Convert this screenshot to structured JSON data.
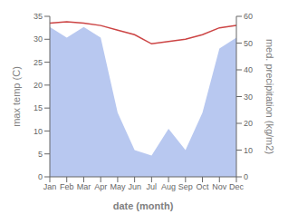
{
  "chart_data": {
    "type": "line",
    "xlabel": "date (month)",
    "ylabel": "max temp (C)",
    "y2label": "med. precipitation (kg/m2)",
    "categories": [
      "Jan",
      "Feb",
      "Mar",
      "Apr",
      "May",
      "Jun",
      "Jul",
      "Aug",
      "Sep",
      "Oct",
      "Nov",
      "Dec"
    ],
    "series": [
      {
        "type": "area",
        "axis": "y2",
        "color": "#b8c8f0",
        "values": [
          56.0,
          52.0,
          56.0,
          52.0,
          24.0,
          10.0,
          8.0,
          18.0,
          10.0,
          24.0,
          48.0,
          52.0
        ]
      },
      {
        "type": "line",
        "color": "#cc4444",
        "values": [
          33.5,
          33.8,
          33.5,
          33.0,
          32.0,
          31.0,
          29.0,
          29.5,
          30.0,
          31.0,
          32.5,
          33.0
        ]
      }
    ],
    "ylim": [
      0,
      35
    ],
    "yticks": [
      0,
      5,
      10,
      15,
      20,
      25,
      30,
      35
    ],
    "y2lim": [
      0,
      60
    ],
    "y2ticks": [
      0,
      10,
      20,
      30,
      40,
      50,
      60
    ],
    "grid": false
  }
}
